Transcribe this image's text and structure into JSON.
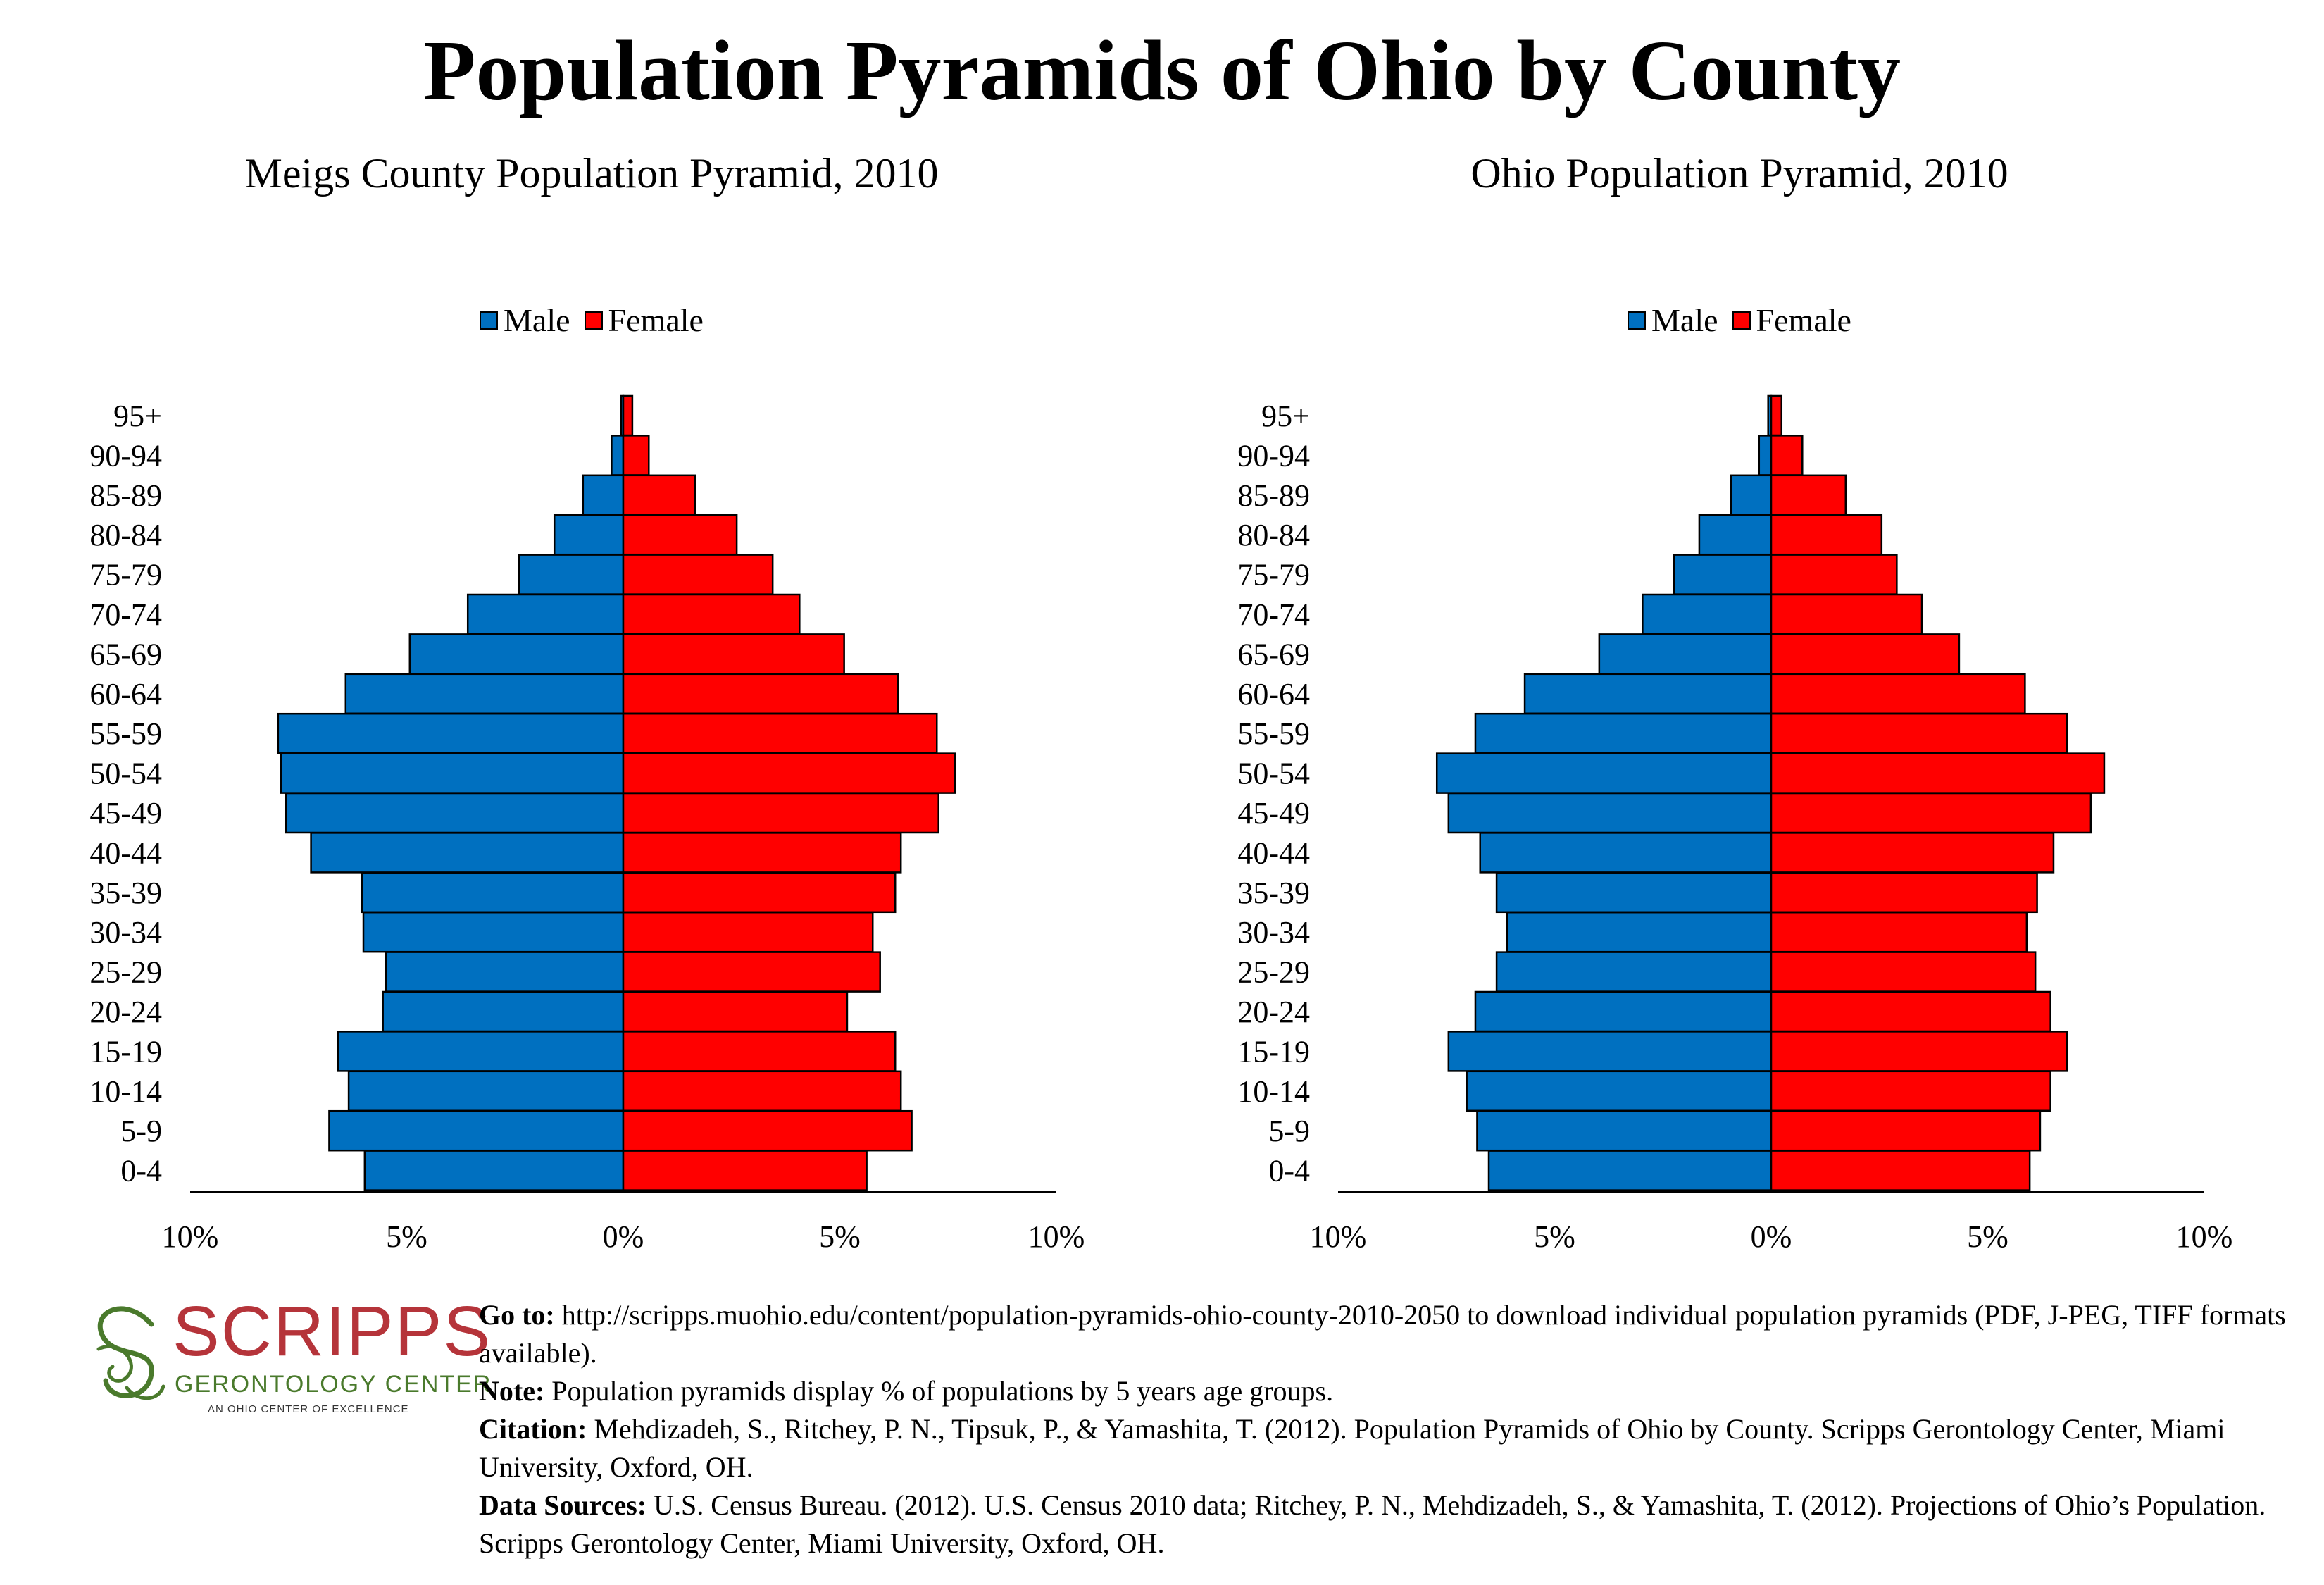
{
  "title": "Population Pyramids of Ohio by County",
  "colors": {
    "male": "#0070c0",
    "female": "#ff0000"
  },
  "chart_data": [
    {
      "type": "bar",
      "title": "Meigs County Population Pyramid, 2010",
      "orientation": "horizontal-pyramid",
      "legend": {
        "placement": "top-center",
        "entries": [
          "Male",
          "Female"
        ]
      },
      "categories": [
        "95+",
        "90-94",
        "85-89",
        "80-84",
        "75-79",
        "70-74",
        "65-69",
        "60-64",
        "55-59",
        "50-54",
        "45-49",
        "40-44",
        "35-39",
        "30-34",
        "25-29",
        "20-24",
        "15-19",
        "10-14",
        "5-9",
        "0-4"
      ],
      "series": [
        {
          "name": "Male",
          "values": [
            0.05,
            0.27,
            0.93,
            1.59,
            2.41,
            3.59,
            4.93,
            6.41,
            7.97,
            7.9,
            7.79,
            7.21,
            6.03,
            6.0,
            5.48,
            5.55,
            6.59,
            6.34,
            6.79,
            5.97
          ]
        },
        {
          "name": "Female",
          "values": [
            0.21,
            0.59,
            1.66,
            2.62,
            3.45,
            4.07,
            5.1,
            6.34,
            7.24,
            7.66,
            7.28,
            6.41,
            6.28,
            5.76,
            5.93,
            5.17,
            6.28,
            6.41,
            6.66,
            5.62
          ]
        }
      ],
      "xticks": [
        "10%",
        "5%",
        "0%",
        "5%",
        "10%"
      ],
      "xlim": [
        -10,
        10
      ],
      "grid": false
    },
    {
      "type": "bar",
      "title": "Ohio Population Pyramid, 2010",
      "orientation": "horizontal-pyramid",
      "legend": {
        "placement": "top-center",
        "entries": [
          "Male",
          "Female"
        ]
      },
      "categories": [
        "95+",
        "90-94",
        "85-89",
        "80-84",
        "75-79",
        "70-74",
        "65-69",
        "60-64",
        "55-59",
        "50-54",
        "45-49",
        "40-44",
        "35-39",
        "30-34",
        "25-29",
        "20-24",
        "15-19",
        "10-14",
        "5-9",
        "0-4"
      ],
      "series": [
        {
          "name": "Male",
          "values": [
            0.07,
            0.28,
            0.93,
            1.66,
            2.24,
            2.97,
            3.97,
            5.69,
            6.83,
            7.72,
            7.45,
            6.72,
            6.34,
            6.1,
            6.34,
            6.83,
            7.45,
            7.03,
            6.79,
            6.52
          ]
        },
        {
          "name": "Female",
          "values": [
            0.24,
            0.72,
            1.72,
            2.55,
            2.9,
            3.48,
            4.34,
            5.86,
            6.83,
            7.69,
            7.38,
            6.52,
            6.14,
            5.9,
            6.1,
            6.45,
            6.83,
            6.45,
            6.21,
            5.97
          ]
        }
      ],
      "xticks": [
        "10%",
        "5%",
        "0%",
        "5%",
        "10%"
      ],
      "xlim": [
        -10,
        10
      ],
      "grid": false
    }
  ],
  "logo": {
    "name": "SCRIPPS",
    "subtitle": "GERONTOLOGY CENTER",
    "tagline": "AN OHIO CENTER OF EXCELLENCE"
  },
  "notes": {
    "goto_label": "Go to:",
    "goto_text": " http://scripps.muohio.edu/content/population-pyramids-ohio-county-2010-2050 to download individual population pyramids (PDF, J-PEG, TIFF formats available).",
    "note_label": "Note:",
    "note_text": " Population pyramids display % of populations by 5 years age groups.",
    "citation_label": "Citation:",
    "citation_text": " Mehdizadeh, S., Ritchey, P. N., Tipsuk, P., & Yamashita, T. (2012). Population Pyramids of Ohio by County. Scripps Gerontology Center, Miami University, Oxford, OH.",
    "sources_label": "Data Sources:",
    "sources_text": " U.S. Census Bureau. (2012). U.S. Census 2010 data; Ritchey, P. N., Mehdizadeh, S., & Yamashita, T. (2012). Projections of Ohio’s Population. Scripps Gerontology Center, Miami University, Oxford, OH."
  }
}
